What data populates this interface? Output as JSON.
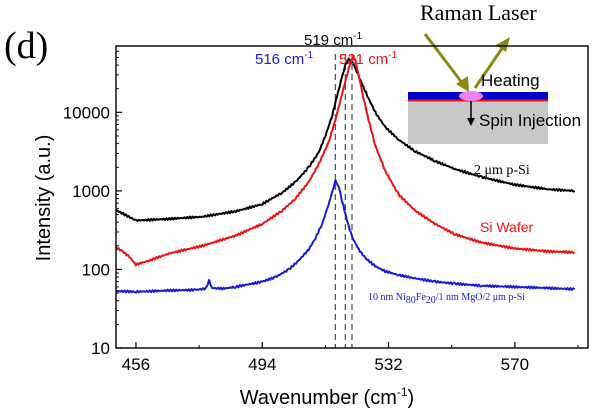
{
  "panel_label": "(d)",
  "inset": {
    "laser_label": "Raman Laser",
    "heating_label": "Heating",
    "spin_label": "Spin Injection"
  },
  "annotations": {
    "peak_mid_label": "519 cm",
    "peak_mid_sup": "-1",
    "peak_left_label": "516 cm",
    "peak_left_sup": "-1",
    "peak_right_label": "521 cm",
    "peak_right_sup": "-1",
    "curve1_label": "2 μm p-Si",
    "curve2_label": "Si Wafer",
    "curve3_parts": [
      "10 nm Ni",
      "80",
      "Fe",
      "20",
      "/1 nm MgO/2 μm p-Si"
    ]
  },
  "colors": {
    "black": "#000000",
    "red": "#ee1111",
    "blue": "#1a1ad6",
    "olive": "#8a8a14",
    "layer_blue": "#0000cc",
    "substrate": "#c8c8c8",
    "heat_spot": "#ee82ee"
  },
  "chart_data": {
    "type": "line",
    "xlabel": "Wavenumber (cm",
    "xlabel_sup": "-1",
    "xlabel_end": ")",
    "ylabel": "Intensity (a.u.)",
    "y_scale": "log",
    "xlim": [
      450,
      592
    ],
    "ylim": [
      10,
      70000
    ],
    "x_ticks": [
      456,
      494,
      532,
      570
    ],
    "y_ticks": [
      10,
      100,
      1000,
      10000
    ],
    "y_tick_labels": [
      "10",
      "100",
      "1000",
      "10000"
    ],
    "reference_lines_x": [
      516,
      519,
      521
    ],
    "series": [
      {
        "name": "2 μm p-Si",
        "color": "#000000",
        "x": [
          450,
          456,
          466,
          476,
          486,
          494,
          500,
          504,
          508,
          511,
          513,
          515,
          516.5,
          518,
          519,
          520,
          521,
          522.5,
          524,
          526,
          528,
          531,
          535,
          540,
          546,
          552,
          560,
          570,
          580,
          588
        ],
        "y": [
          570,
          420,
          440,
          470,
          550,
          680,
          950,
          1300,
          2000,
          3100,
          5000,
          9000,
          16000,
          28000,
          40000,
          48000,
          45000,
          33000,
          23000,
          15000,
          10000,
          6500,
          4500,
          3200,
          2400,
          1900,
          1500,
          1200,
          1050,
          1000
        ]
      },
      {
        "name": "Si Wafer",
        "color": "#ee1111",
        "x": [
          450,
          452,
          454,
          456,
          460,
          466,
          476,
          486,
          494,
          500,
          504,
          508,
          511,
          514,
          516,
          518,
          519.5,
          520.5,
          521.3,
          522,
          523,
          524.5,
          526,
          528,
          531,
          535,
          540,
          546,
          552,
          560,
          570,
          580,
          588
        ],
        "y": [
          190,
          170,
          145,
          115,
          130,
          160,
          200,
          270,
          380,
          560,
          800,
          1300,
          2200,
          4200,
          8000,
          17000,
          30000,
          42000,
          50000,
          46000,
          30000,
          15000,
          8000,
          3800,
          1800,
          900,
          560,
          380,
          280,
          220,
          185,
          170,
          165
        ]
      },
      {
        "name": "10 nm Ni80Fe20/1 nm MgO/2 μm p-Si",
        "color": "#1a1ad6",
        "x": [
          450,
          456,
          466,
          474,
          477,
          478,
          479,
          482,
          486,
          494,
          498,
          502,
          505,
          508,
          510,
          512,
          513.5,
          515,
          516,
          517,
          518,
          519.5,
          521,
          523,
          525,
          528,
          531,
          535,
          540,
          546,
          552,
          560,
          570,
          580,
          588
        ],
        "y": [
          53,
          52,
          54,
          55,
          57,
          72,
          58,
          57,
          60,
          70,
          80,
          100,
          130,
          180,
          250,
          380,
          580,
          950,
          1350,
          1150,
          750,
          420,
          260,
          180,
          140,
          110,
          95,
          85,
          77,
          70,
          66,
          62,
          60,
          58,
          56
        ]
      }
    ]
  }
}
